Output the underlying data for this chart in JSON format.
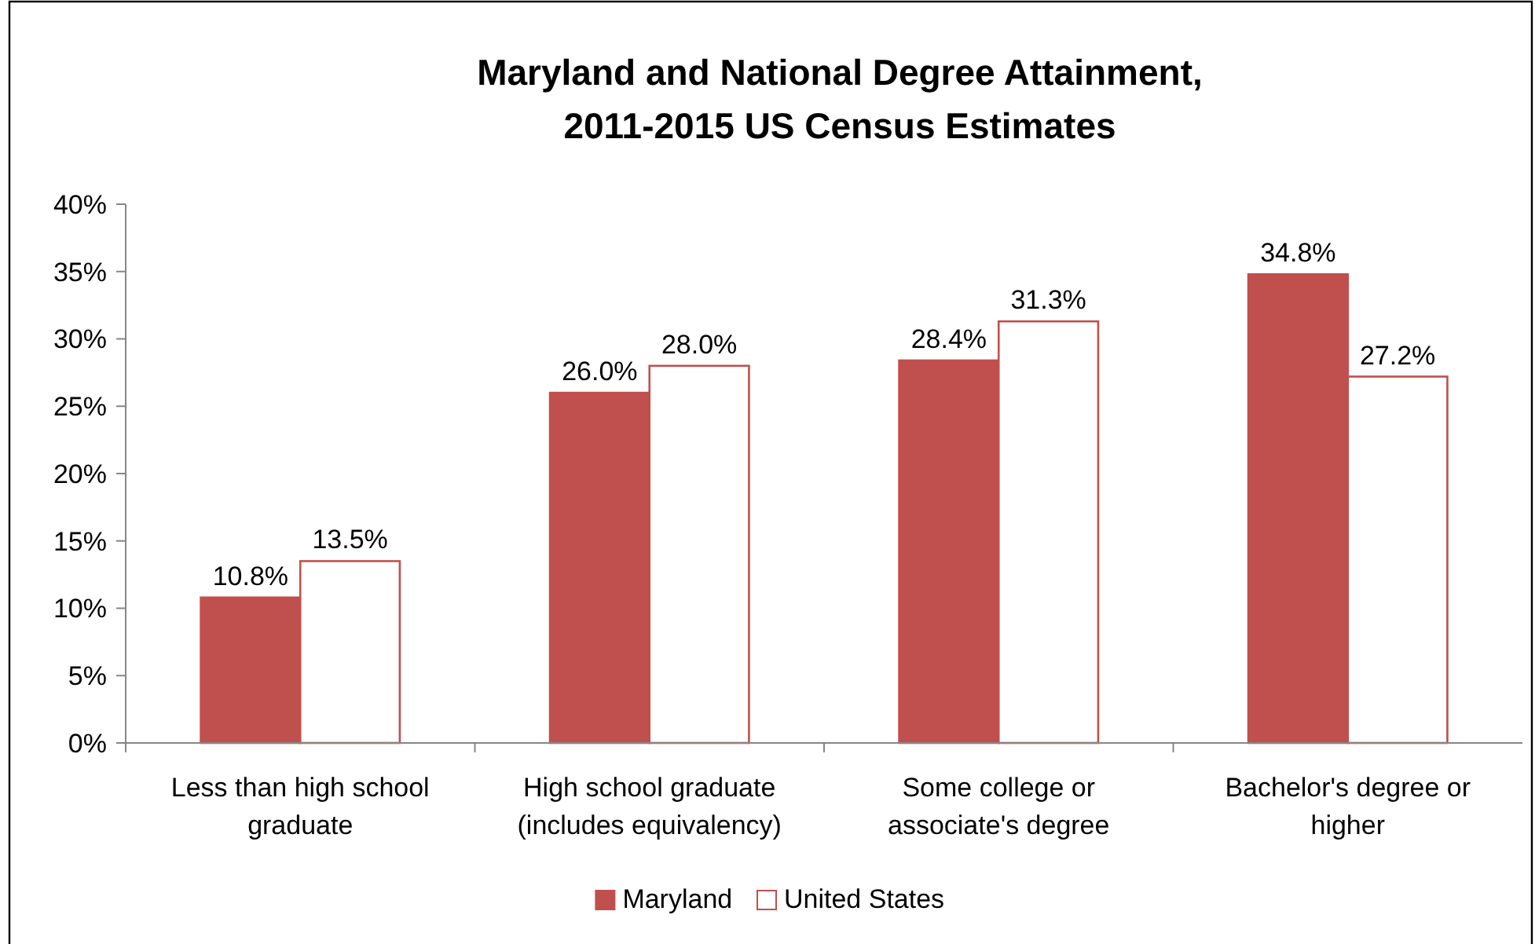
{
  "chart_data": {
    "type": "bar",
    "title": "Maryland and National Degree Attainment,\n2011-2015 US Census Estimates",
    "categories": [
      "Less than high school graduate",
      "High school graduate (includes equivalency)",
      "Some college or associate's degree",
      "Bachelor's degree or higher"
    ],
    "series": [
      {
        "name": "Maryland",
        "color": "#c0504d",
        "values": [
          10.8,
          26.0,
          28.4,
          34.8
        ],
        "value_labels": [
          "10.8%",
          "26.0%",
          "28.4%",
          "34.8%"
        ]
      },
      {
        "name": "United States",
        "color": "#ffffff",
        "values": [
          13.5,
          28.0,
          31.3,
          27.2
        ],
        "value_labels": [
          "13.5%",
          "28.0%",
          "31.3%",
          "27.2%"
        ]
      }
    ],
    "ylim": [
      0,
      40
    ],
    "yticks": [
      {
        "value": 0,
        "label": "0%"
      },
      {
        "value": 5,
        "label": "5%"
      },
      {
        "value": 10,
        "label": "10%"
      },
      {
        "value": 15,
        "label": "15%"
      },
      {
        "value": 20,
        "label": "20%"
      },
      {
        "value": 25,
        "label": "25%"
      },
      {
        "value": 30,
        "label": "30%"
      },
      {
        "value": 35,
        "label": "35%"
      },
      {
        "value": 40,
        "label": "40%"
      }
    ],
    "grid": false,
    "legend": "bottom"
  }
}
